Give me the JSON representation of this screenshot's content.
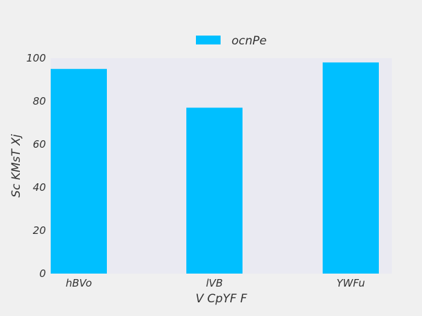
{
  "chart_data": {
    "type": "bar",
    "categories": [
      "hBVo",
      "lVB",
      "YWFu"
    ],
    "series": [
      {
        "name": "ocnPe",
        "values": [
          95,
          77,
          98
        ],
        "color": "#00bfff"
      }
    ],
    "xlabel": "V CpYF F",
    "ylabel": "Sc KMsT Xj",
    "ylim": [
      0,
      100
    ],
    "yticks": [
      0,
      20,
      40,
      60,
      80,
      100
    ],
    "grid": false,
    "legend": "top-center",
    "plot_background": "#eaeaf2",
    "figure_background": "#f0f0f0"
  }
}
